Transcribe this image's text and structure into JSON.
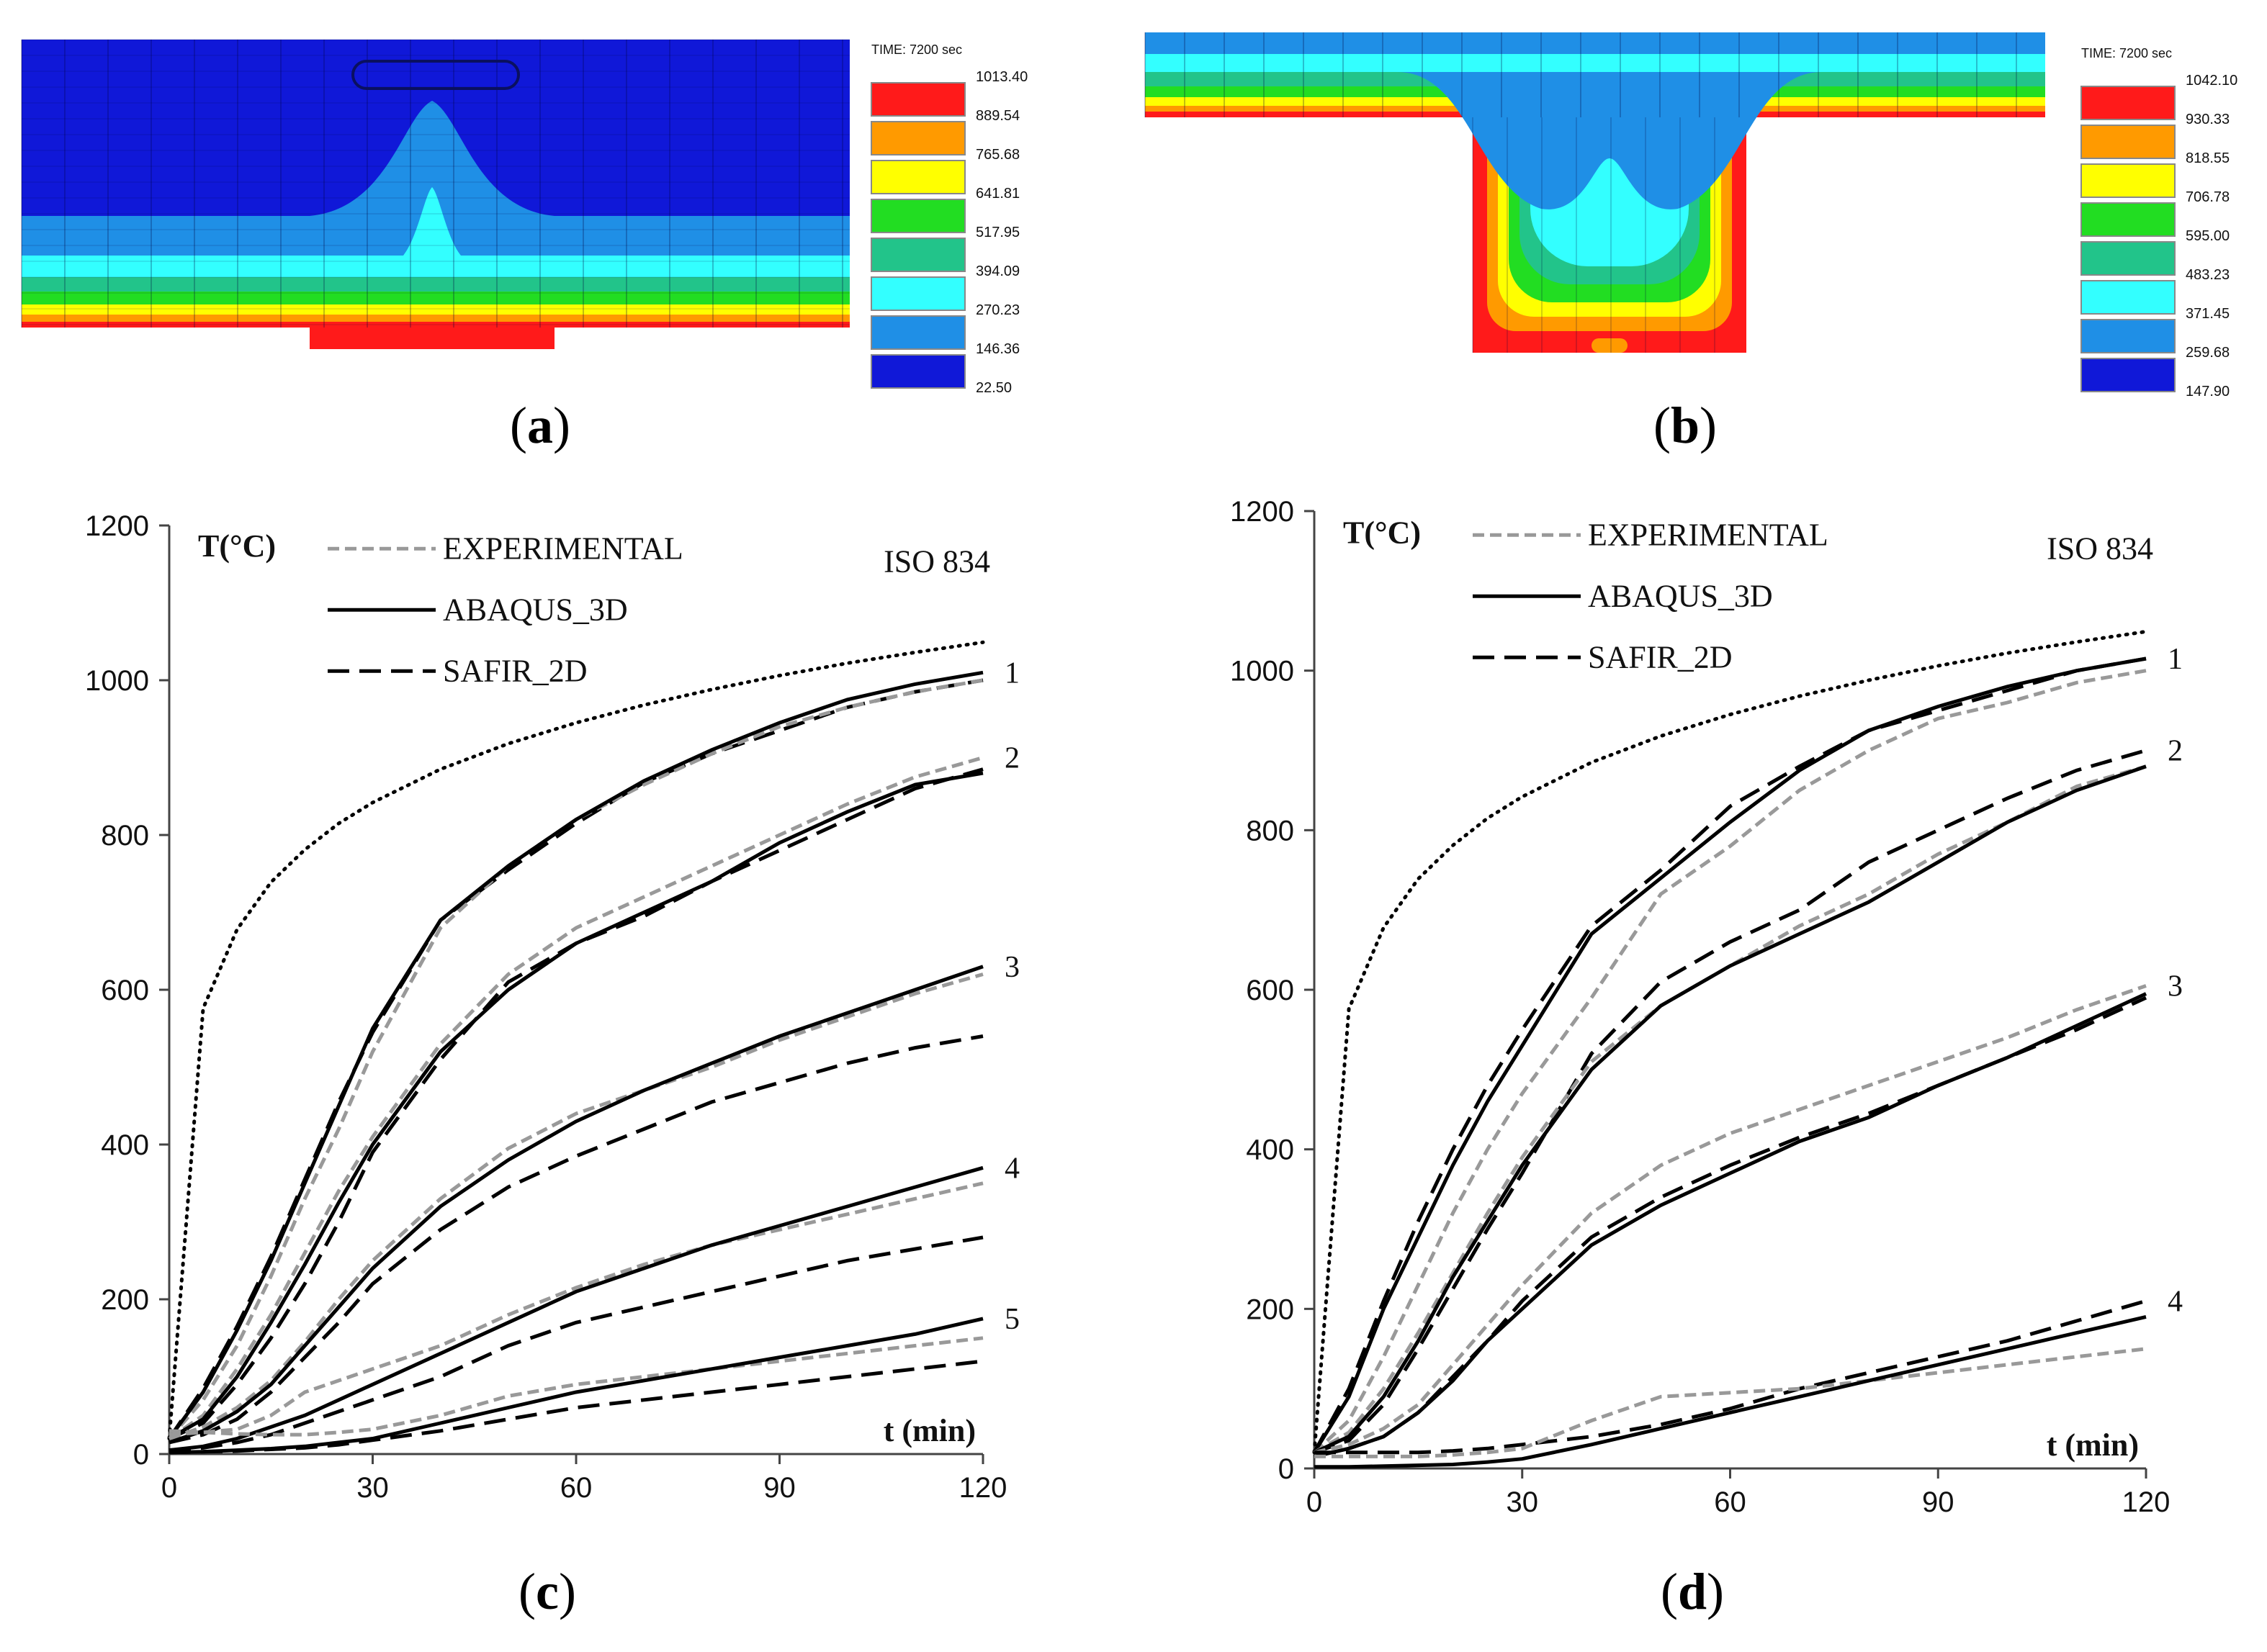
{
  "contour_a": {
    "time_label": "TIME: 7200 sec",
    "scale_values": [
      "1013.40",
      "889.54",
      "765.68",
      "641.81",
      "517.95",
      "394.09",
      "270.23",
      "146.36",
      "22.50"
    ],
    "colors": [
      "#ff1a1a",
      "#ff9a00",
      "#ffff00",
      "#22dd22",
      "#22c48a",
      "#33ffff",
      "#1f8fe6",
      "#1018d8"
    ],
    "caption": "a"
  },
  "contour_b": {
    "time_label": "TIME: 7200 sec",
    "scale_values": [
      "1042.10",
      "930.33",
      "818.55",
      "706.78",
      "595.00",
      "483.23",
      "371.45",
      "259.68",
      "147.90"
    ],
    "colors": [
      "#ff1a1a",
      "#ff9a00",
      "#ffff00",
      "#22dd22",
      "#22c48a",
      "#33ffff",
      "#1f8fe6",
      "#1018d8"
    ],
    "caption": "b"
  },
  "chart_data": [
    {
      "id": "c",
      "type": "line",
      "caption": "c",
      "ylabel": "T(°C)",
      "xlabel": "t (min)",
      "note": "ISO 834",
      "xlim": [
        0,
        120
      ],
      "ylim": [
        0,
        1200
      ],
      "xticks": [
        0,
        30,
        60,
        90,
        120
      ],
      "yticks": [
        0,
        200,
        400,
        600,
        800,
        1000,
        1200
      ],
      "legend": [
        "EXPERIMENTAL",
        "ABAQUS_3D",
        "SAFIR_2D"
      ],
      "x": [
        0,
        5,
        10,
        15,
        20,
        25,
        30,
        40,
        50,
        60,
        70,
        80,
        90,
        100,
        110,
        120
      ],
      "iso834": [
        20,
        576,
        678,
        739,
        781,
        815,
        842,
        885,
        918,
        945,
        968,
        988,
        1006,
        1022,
        1036,
        1049
      ],
      "curves": [
        {
          "label": "1",
          "experimental": [
            20,
            70,
            140,
            230,
            330,
            420,
            520,
            680,
            760,
            820,
            865,
            905,
            940,
            965,
            985,
            1000
          ],
          "abaqus": [
            20,
            80,
            160,
            250,
            350,
            450,
            550,
            690,
            760,
            820,
            870,
            910,
            945,
            975,
            995,
            1010
          ],
          "safir": [
            20,
            85,
            165,
            255,
            355,
            455,
            545,
            690,
            755,
            815,
            868,
            905,
            935,
            965,
            985,
            1000
          ]
        },
        {
          "label": "2",
          "experimental": [
            20,
            50,
            110,
            180,
            260,
            340,
            410,
            530,
            620,
            680,
            720,
            760,
            800,
            840,
            875,
            900
          ],
          "abaqus": [
            20,
            45,
            100,
            170,
            245,
            325,
            400,
            520,
            600,
            660,
            700,
            740,
            790,
            830,
            865,
            880
          ],
          "safir": [
            20,
            40,
            90,
            150,
            220,
            300,
            390,
            510,
            610,
            660,
            695,
            740,
            780,
            820,
            860,
            885
          ]
        },
        {
          "label": "3",
          "experimental": [
            20,
            35,
            60,
            95,
            145,
            200,
            250,
            330,
            395,
            440,
            470,
            500,
            535,
            565,
            595,
            620
          ],
          "abaqus": [
            15,
            30,
            55,
            90,
            140,
            190,
            240,
            320,
            380,
            430,
            470,
            505,
            540,
            570,
            600,
            630
          ],
          "safir": [
            15,
            25,
            45,
            80,
            125,
            170,
            220,
            290,
            345,
            385,
            420,
            455,
            480,
            505,
            525,
            540
          ]
        },
        {
          "label": "4",
          "experimental": [
            25,
            28,
            32,
            50,
            80,
            95,
            110,
            140,
            180,
            215,
            245,
            270,
            290,
            310,
            330,
            350
          ],
          "abaqus": [
            5,
            10,
            20,
            35,
            50,
            70,
            90,
            130,
            170,
            210,
            240,
            270,
            295,
            320,
            345,
            370
          ],
          "safir": [
            5,
            8,
            15,
            25,
            40,
            55,
            70,
            100,
            140,
            170,
            190,
            210,
            230,
            250,
            265,
            280
          ]
        },
        {
          "label": "5",
          "experimental": [
            30,
            28,
            26,
            25,
            25,
            28,
            32,
            50,
            75,
            90,
            100,
            110,
            120,
            130,
            140,
            150
          ],
          "abaqus": [
            2,
            3,
            5,
            7,
            10,
            15,
            20,
            40,
            60,
            80,
            95,
            110,
            125,
            140,
            155,
            175
          ],
          "safir": [
            2,
            3,
            4,
            6,
            8,
            12,
            18,
            30,
            45,
            60,
            70,
            80,
            90,
            100,
            110,
            120
          ]
        }
      ]
    },
    {
      "id": "d",
      "type": "line",
      "caption": "d",
      "ylabel": "T(°C)",
      "xlabel": "t (min)",
      "note": "ISO 834",
      "xlim": [
        0,
        120
      ],
      "ylim": [
        0,
        1200
      ],
      "xticks": [
        0,
        30,
        60,
        90,
        120
      ],
      "yticks": [
        0,
        200,
        400,
        600,
        800,
        1000,
        1200
      ],
      "legend": [
        "EXPERIMENTAL",
        "ABAQUS_3D",
        "SAFIR_2D"
      ],
      "x": [
        0,
        5,
        10,
        15,
        20,
        25,
        30,
        40,
        50,
        60,
        70,
        80,
        90,
        100,
        110,
        120
      ],
      "iso834": [
        20,
        576,
        678,
        739,
        781,
        815,
        842,
        885,
        918,
        945,
        968,
        988,
        1006,
        1022,
        1036,
        1049
      ],
      "curves": [
        {
          "label": "1",
          "experimental": [
            20,
            60,
            140,
            230,
            320,
            400,
            470,
            590,
            720,
            780,
            850,
            900,
            940,
            960,
            985,
            1000
          ],
          "abaqus": [
            20,
            90,
            200,
            290,
            380,
            460,
            530,
            670,
            740,
            810,
            875,
            925,
            955,
            980,
            1000,
            1015
          ],
          "safir": [
            20,
            100,
            210,
            310,
            400,
            480,
            550,
            680,
            750,
            830,
            880,
            925,
            950,
            975,
            1000,
            1015
          ]
        },
        {
          "label": "2",
          "experimental": [
            20,
            45,
            100,
            170,
            245,
            320,
            390,
            510,
            580,
            630,
            680,
            720,
            770,
            810,
            855,
            880
          ],
          "abaqus": [
            20,
            40,
            90,
            160,
            240,
            310,
            380,
            500,
            580,
            630,
            670,
            710,
            760,
            810,
            850,
            880
          ],
          "safir": [
            20,
            35,
            80,
            150,
            225,
            300,
            370,
            520,
            610,
            660,
            700,
            760,
            800,
            840,
            875,
            900
          ]
        },
        {
          "label": "3",
          "experimental": [
            20,
            30,
            50,
            80,
            130,
            180,
            230,
            320,
            380,
            420,
            450,
            480,
            510,
            540,
            575,
            605
          ],
          "abaqus": [
            15,
            25,
            40,
            70,
            110,
            160,
            200,
            280,
            330,
            370,
            410,
            440,
            480,
            515,
            555,
            595
          ],
          "safir": [
            15,
            25,
            40,
            70,
            115,
            160,
            210,
            290,
            340,
            380,
            415,
            445,
            480,
            515,
            550,
            590
          ]
        },
        {
          "label": "4",
          "experimental": [
            15,
            15,
            15,
            15,
            17,
            20,
            25,
            60,
            90,
            95,
            100,
            110,
            120,
            130,
            140,
            150
          ],
          "abaqus": [
            2,
            2,
            3,
            4,
            5,
            8,
            12,
            30,
            50,
            70,
            90,
            110,
            130,
            150,
            170,
            190
          ],
          "safir": [
            20,
            20,
            20,
            20,
            22,
            25,
            30,
            40,
            55,
            75,
            100,
            120,
            140,
            160,
            185,
            210
          ]
        }
      ]
    }
  ]
}
